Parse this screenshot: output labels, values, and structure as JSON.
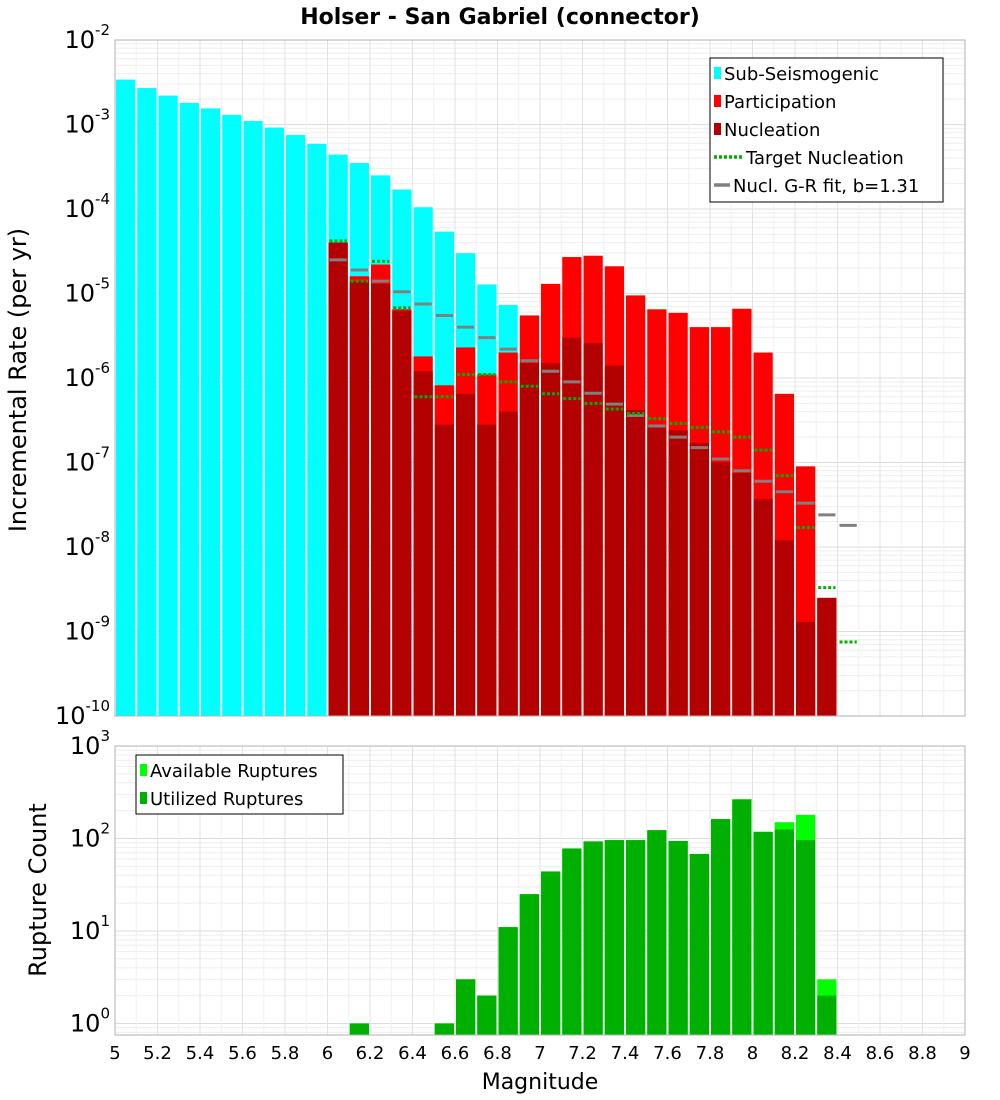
{
  "chart_data": [
    {
      "type": "bar",
      "title": "Holser - San Gabriel (connector)",
      "ylabel": "Incremental Rate (per yr)",
      "xlim": [
        5,
        9
      ],
      "ylim": [
        1e-10,
        0.01
      ],
      "yscale": "log",
      "grid": true,
      "legend_position": "top-right",
      "bin_width": 0.1,
      "series": [
        {
          "name": "Sub-Seismogenic",
          "style": "bar",
          "color": "#00ffff",
          "x": [
            5.05,
            5.15,
            5.25,
            5.35,
            5.45,
            5.55,
            5.65,
            5.75,
            5.85,
            5.95,
            6.05,
            6.15,
            6.25,
            6.35,
            6.45,
            6.55,
            6.65,
            6.75,
            6.85
          ],
          "values": [
            0.0034,
            0.0027,
            0.0022,
            0.0018,
            0.00155,
            0.0013,
            0.0011,
            0.00092,
            0.00075,
            0.00059,
            0.00044,
            0.00035,
            0.00025,
            0.00017,
            0.000105,
            5.4e-05,
            3e-05,
            1.28e-05,
            7.3e-06
          ]
        },
        {
          "name": "Participation",
          "style": "bar",
          "color": "#ff0000",
          "x": [
            6.05,
            6.15,
            6.25,
            6.35,
            6.45,
            6.55,
            6.65,
            6.75,
            6.85,
            6.95,
            7.05,
            7.15,
            7.25,
            7.35,
            7.45,
            7.55,
            7.65,
            7.75,
            7.85,
            7.95,
            8.05,
            8.15,
            8.25,
            8.35
          ],
          "values": [
            4e-05,
            1.6e-05,
            2.2e-05,
            6.5e-06,
            1.8e-06,
            8.2e-07,
            2.3e-06,
            1.1e-06,
            2e-06,
            5.5e-06,
            1.3e-05,
            2.7e-05,
            2.8e-05,
            2.1e-05,
            9.5e-06,
            6.5e-06,
            5.9e-06,
            4e-06,
            4e-06,
            6.6e-06,
            2e-06,
            6.5e-07,
            9e-08,
            2.5e-09
          ]
        },
        {
          "name": "Nucleation",
          "style": "bar",
          "color": "#b30000",
          "x": [
            6.05,
            6.15,
            6.25,
            6.35,
            6.45,
            6.55,
            6.65,
            6.75,
            6.85,
            6.95,
            7.05,
            7.15,
            7.25,
            7.35,
            7.45,
            7.55,
            7.65,
            7.75,
            7.85,
            7.95,
            8.05,
            8.15,
            8.25,
            8.35
          ],
          "values": [
            4e-05,
            1.4e-05,
            1.3e-05,
            6.2e-06,
            1.2e-06,
            2.8e-07,
            6.5e-07,
            2.8e-07,
            4e-07,
            1.5e-06,
            1.5e-06,
            3e-06,
            2.6e-06,
            1.4e-06,
            4.2e-07,
            2.6e-07,
            2.4e-07,
            1.7e-07,
            1e-07,
            7.5e-08,
            3.7e-08,
            1.2e-08,
            1.3e-09,
            2.5e-09
          ]
        },
        {
          "name": "Target Nucleation",
          "style": "dotted-step",
          "color": "#00b000",
          "x": [
            6.05,
            6.15,
            6.25,
            6.35,
            6.45,
            6.55,
            6.65,
            6.75,
            6.85,
            6.95,
            7.05,
            7.15,
            7.25,
            7.35,
            7.45,
            7.55,
            7.65,
            7.75,
            7.85,
            7.95,
            8.05,
            8.15,
            8.25,
            8.35,
            8.45
          ],
          "values": [
            4.2e-05,
            1.4e-05,
            2.4e-05,
            6.8e-06,
            6e-07,
            6e-07,
            1.1e-06,
            1.1e-06,
            9e-07,
            8e-07,
            6.5e-07,
            5.7e-07,
            5e-07,
            4.3e-07,
            3.8e-07,
            3.3e-07,
            2.9e-07,
            2.6e-07,
            2.3e-07,
            2e-07,
            1.4e-07,
            7e-08,
            1.7e-08,
            3.3e-09,
            7.5e-10
          ]
        },
        {
          "name": "Nucl. G-R fit, b=1.31",
          "style": "step",
          "color": "#808080",
          "x": [
            6.05,
            6.15,
            6.25,
            6.35,
            6.45,
            6.55,
            6.65,
            6.75,
            6.85,
            6.95,
            7.05,
            7.15,
            7.25,
            7.35,
            7.45,
            7.55,
            7.65,
            7.75,
            7.85,
            7.95,
            8.05,
            8.15,
            8.25,
            8.35,
            8.45
          ],
          "values": [
            2.5e-05,
            1.9e-05,
            1.4e-05,
            1.05e-05,
            7.5e-06,
            5.5e-06,
            4e-06,
            3e-06,
            2.2e-06,
            1.6e-06,
            1.2e-06,
            9e-07,
            6.6e-07,
            4.9e-07,
            3.6e-07,
            2.7e-07,
            2e-07,
            1.5e-07,
            1.1e-07,
            8e-08,
            6e-08,
            4.5e-08,
            3.3e-08,
            2.4e-08,
            1.8e-08
          ]
        }
      ]
    },
    {
      "type": "bar",
      "xlabel": "Magnitude",
      "ylabel": "Rupture Count",
      "xlim": [
        5,
        9
      ],
      "ylim": [
        0.75,
        1000
      ],
      "yscale": "log",
      "grid": true,
      "legend_position": "top-left",
      "bin_width": 0.1,
      "series": [
        {
          "name": "Available Ruptures",
          "style": "bar",
          "color": "#00ff00",
          "x": [
            6.15,
            6.55,
            6.65,
            6.75,
            6.85,
            6.95,
            7.05,
            7.15,
            7.25,
            7.35,
            7.45,
            7.55,
            7.65,
            7.75,
            7.85,
            7.95,
            8.05,
            8.15,
            8.25,
            8.35
          ],
          "values": [
            1,
            1,
            3,
            2,
            11,
            25,
            44,
            78,
            93,
            96,
            96,
            123,
            94,
            68,
            162,
            265,
            118,
            150,
            180,
            3
          ]
        },
        {
          "name": "Utilized Ruptures",
          "style": "bar",
          "color": "#00b000",
          "x": [
            6.15,
            6.55,
            6.65,
            6.75,
            6.85,
            6.95,
            7.05,
            7.15,
            7.25,
            7.35,
            7.45,
            7.55,
            7.65,
            7.75,
            7.85,
            7.95,
            8.05,
            8.15,
            8.25,
            8.35
          ],
          "values": [
            1,
            1,
            3,
            2,
            11,
            25,
            44,
            78,
            93,
            96,
            96,
            123,
            94,
            68,
            162,
            265,
            118,
            125,
            96,
            2
          ]
        }
      ]
    }
  ],
  "x_ticks": [
    "5",
    "5.2",
    "5.4",
    "5.6",
    "5.8",
    "6",
    "6.2",
    "6.4",
    "6.6",
    "6.8",
    "7",
    "7.2",
    "7.4",
    "7.6",
    "7.8",
    "8",
    "8.2",
    "8.4",
    "8.6",
    "8.8",
    "9"
  ],
  "top_y_ticks": [
    {
      "base": "10",
      "exp": "-2",
      "value": 0.01
    },
    {
      "base": "10",
      "exp": "-3",
      "value": 0.001
    },
    {
      "base": "10",
      "exp": "-4",
      "value": 0.0001
    },
    {
      "base": "10",
      "exp": "-5",
      "value": 1e-05
    },
    {
      "base": "10",
      "exp": "-6",
      "value": 1e-06
    },
    {
      "base": "10",
      "exp": "-7",
      "value": 1e-07
    },
    {
      "base": "10",
      "exp": "-8",
      "value": 1e-08
    },
    {
      "base": "10",
      "exp": "-9",
      "value": 1e-09
    },
    {
      "base": "10",
      "exp": "-10",
      "value": 1e-10
    }
  ],
  "bottom_y_ticks": [
    {
      "base": "10",
      "exp": "3",
      "value": 1000
    },
    {
      "base": "10",
      "exp": "2",
      "value": 100
    },
    {
      "base": "10",
      "exp": "1",
      "value": 10
    },
    {
      "base": "10",
      "exp": "0",
      "value": 1
    }
  ]
}
